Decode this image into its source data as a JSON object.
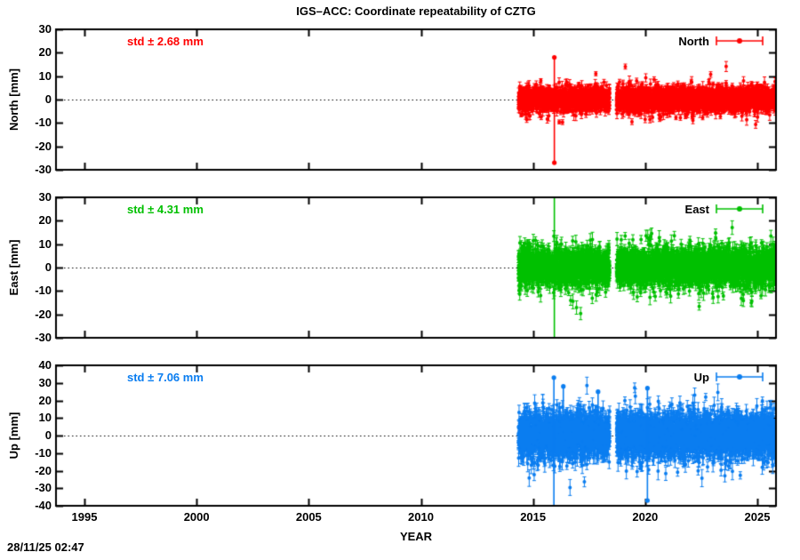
{
  "chart_data": {
    "type": "scatter",
    "title": "IGS–ACC: Coordinate repeatability of CZTG",
    "xlabel": "YEAR",
    "x_ticks": [
      1995,
      2000,
      2005,
      2010,
      2015,
      2020,
      2025
    ],
    "xlim": [
      1993.73,
      2025.83
    ],
    "grid": false,
    "zero_line": "dotted",
    "legend_position": "inside-top-right",
    "sampling": {
      "start": 2014.35,
      "end": 2025.84,
      "gap": [
        2018.42,
        2018.72
      ],
      "per_year": 365,
      "dropout": 0.08,
      "seed": 1234
    },
    "panels": [
      {
        "name": "North",
        "ylabel": "North [mm]",
        "std_label": "std ± 2.68 mm",
        "std_mm": 2.68,
        "legend_label": "North",
        "color": "#ff0000",
        "ylim": [
          -30,
          30
        ],
        "ytick_step": 10,
        "scatter": {
          "sigma": 2.3,
          "tail_sigma": 4.6,
          "tail_frac": 0.07,
          "err": [
            0.8,
            2.4
          ]
        },
        "spikes": [
          {
            "x": 2015.95,
            "y_top": 18,
            "y_bot": -27
          }
        ]
      },
      {
        "name": "East",
        "ylabel": "East [mm]",
        "std_label": "std ± 4.31 mm",
        "std_mm": 4.31,
        "legend_label": "East",
        "color": "#00c000",
        "ylim": [
          -30,
          30
        ],
        "ytick_step": 10,
        "scatter": {
          "sigma": 3.8,
          "tail_sigma": 6.8,
          "tail_frac": 0.07,
          "err": [
            1.2,
            3.2
          ]
        },
        "spikes": [
          {
            "x": 2015.95,
            "y_top": 40,
            "y_bot": -40
          }
        ]
      },
      {
        "name": "Up",
        "ylabel": "Up [mm]",
        "std_label": "std ± 7.06 mm",
        "std_mm": 7.06,
        "legend_label": "Up",
        "color": "#0a7df0",
        "ylim": [
          -40,
          40
        ],
        "ytick_step": 10,
        "scatter": {
          "sigma": 6.3,
          "tail_sigma": 10.5,
          "tail_frac": 0.07,
          "err": [
            2.0,
            5.0
          ]
        },
        "spikes": [
          {
            "x": 2015.93,
            "y_top": 33,
            "y_bot": -44
          },
          {
            "x": 2020.1,
            "y_top": 27,
            "y_bot": -37
          },
          {
            "x": 2016.35,
            "y_top": 28,
            "y_bot": 10
          },
          {
            "x": 2017.9,
            "y_top": 25,
            "y_bot": 8
          }
        ]
      }
    ]
  },
  "footer": {
    "timestamp": "28/11/25 02:47"
  }
}
